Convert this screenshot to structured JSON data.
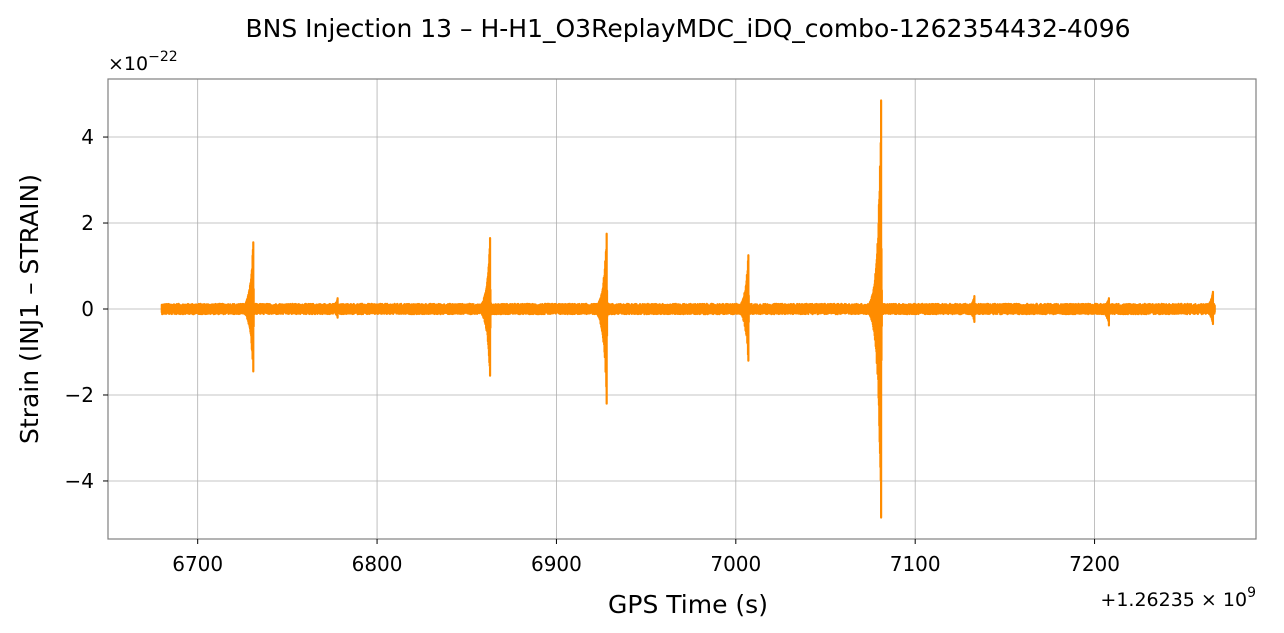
{
  "chart_data": {
    "type": "line",
    "title": "BNS Injection 13 – H-H1_O3ReplayMDC_iDQ_combo-1262354432-4096",
    "xlabel": "GPS Time (s)",
    "ylabel": "Strain (INJ1 – STRAIN)",
    "x_offset_label": "+1.26235 × 10",
    "x_offset_exp": "9",
    "y_scale_label": "×10",
    "y_scale_exp": "−22",
    "xlim": [
      6650,
      7290
    ],
    "ylim": [
      -5.35,
      5.35
    ],
    "xticks": [
      6700,
      6800,
      6900,
      7000,
      7100,
      7200
    ],
    "xtick_labels": [
      "6700",
      "6800",
      "6900",
      "7000",
      "7100",
      "7200"
    ],
    "yticks": [
      -4,
      -2,
      0,
      2,
      4
    ],
    "ytick_labels": [
      "−4",
      "−2",
      "0",
      "2",
      "4"
    ],
    "grid": true,
    "line_color": "#ff8c00",
    "series": [
      {
        "x_range": [
          6680,
          7267
        ],
        "baseline_amplitude": 0.12,
        "events": [
          {
            "x": 6731,
            "ymax": 1.55,
            "ymin": -1.45
          },
          {
            "x": 6778,
            "ymax": 0.25,
            "ymin": -0.2
          },
          {
            "x": 6863,
            "ymax": 1.65,
            "ymin": -1.55
          },
          {
            "x": 6928,
            "ymax": 1.75,
            "ymin": -2.2
          },
          {
            "x": 7007,
            "ymax": 1.25,
            "ymin": -1.2
          },
          {
            "x": 7081,
            "ymax": 4.85,
            "ymin": -4.85
          },
          {
            "x": 7133,
            "ymax": 0.3,
            "ymin": -0.3
          },
          {
            "x": 7208,
            "ymax": 0.25,
            "ymin": -0.38
          },
          {
            "x": 7266,
            "ymax": 0.4,
            "ymin": -0.35
          }
        ]
      }
    ]
  }
}
